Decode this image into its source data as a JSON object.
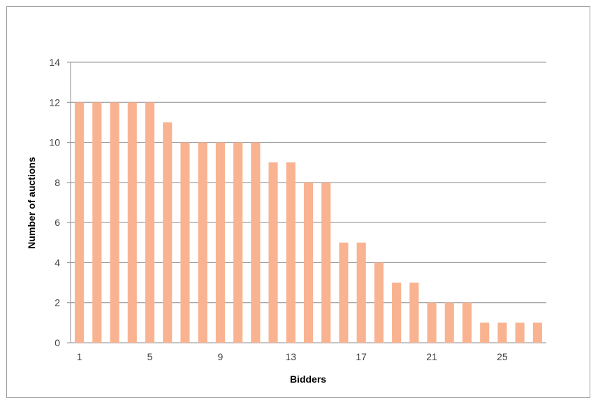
{
  "chart_data": {
    "type": "bar",
    "title": "",
    "xlabel": "Bidders",
    "ylabel": "Number of auctions",
    "categories": [
      1,
      2,
      3,
      4,
      5,
      6,
      7,
      8,
      9,
      10,
      11,
      12,
      13,
      14,
      15,
      16,
      17,
      18,
      19,
      20,
      21,
      22,
      23,
      24,
      25,
      26,
      27
    ],
    "x_tick_labels": [
      "1",
      "5",
      "9",
      "13",
      "17",
      "21",
      "25"
    ],
    "y_tick_labels": [
      "0",
      "2",
      "4",
      "6",
      "8",
      "10",
      "12",
      "14"
    ],
    "values": [
      12,
      12,
      12,
      12,
      12,
      11,
      10,
      10,
      10,
      10,
      10,
      9,
      9,
      8,
      8,
      5,
      5,
      4,
      3,
      3,
      2,
      2,
      2,
      1,
      1,
      1,
      1
    ],
    "ylim": [
      0,
      14
    ],
    "grid": true,
    "bar_color": "#F9B391",
    "grid_color": "#8c8c8c"
  }
}
